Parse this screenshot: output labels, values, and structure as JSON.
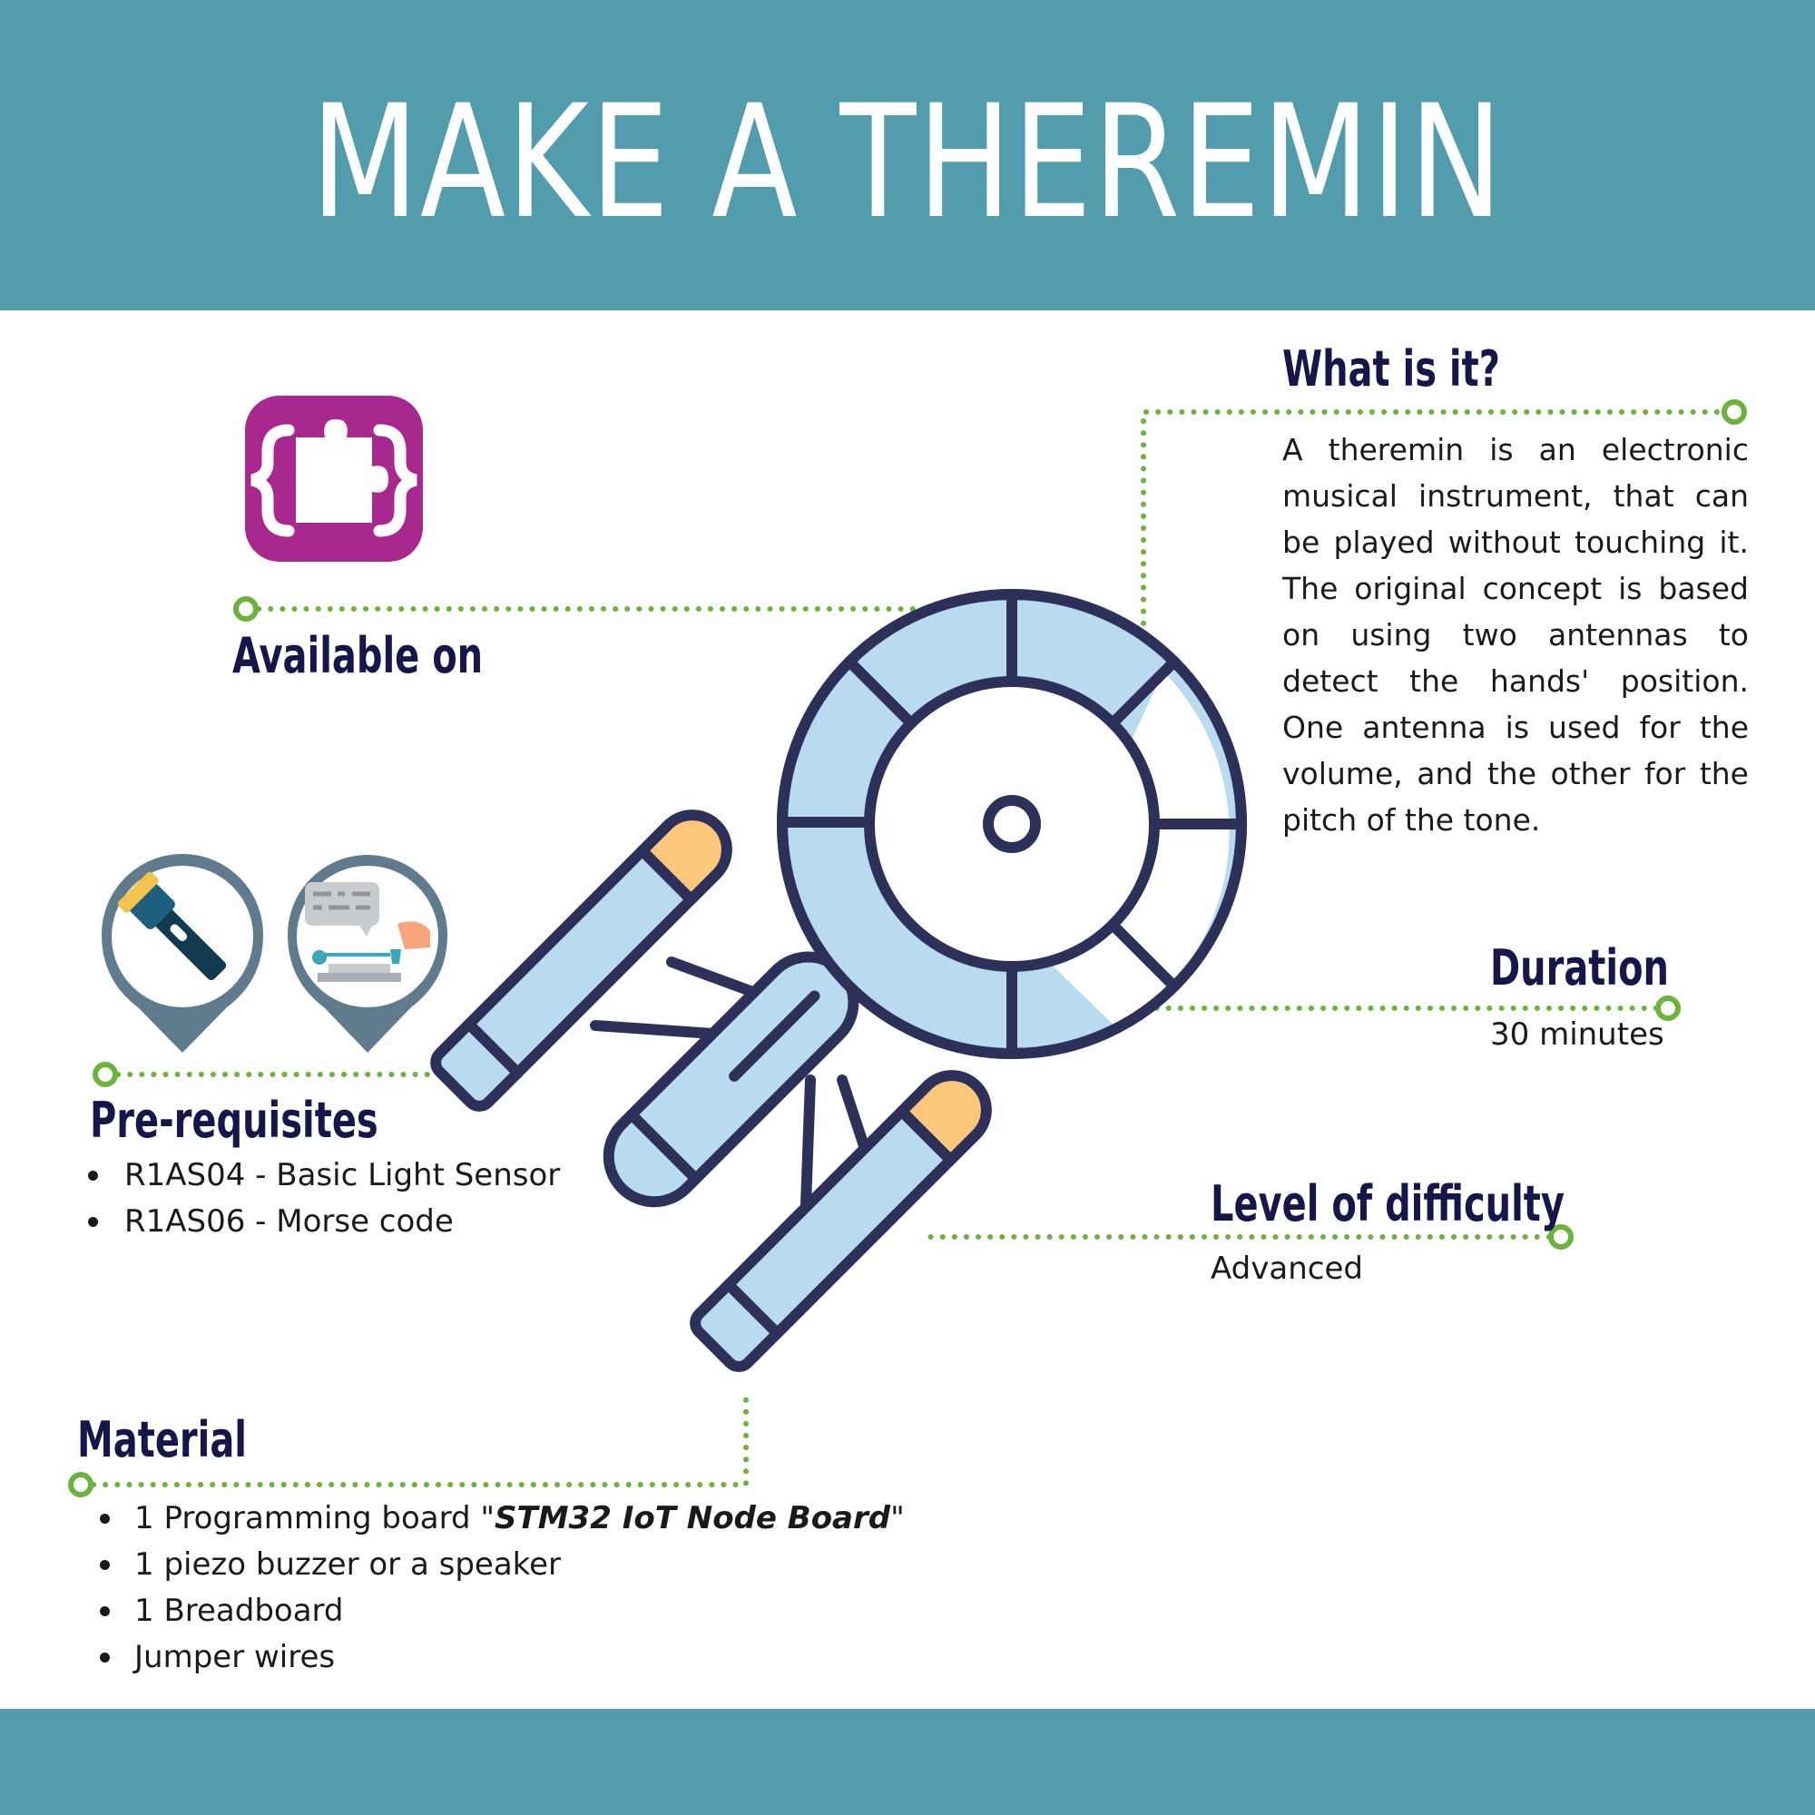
{
  "header": {
    "title": "MAKE A THEREMIN"
  },
  "what_is_it": {
    "heading": "What is it?",
    "text": "A theremin is an electronic musical instrument, that can be played without touching it. The original concept is based on using two antennas to detect the hands' position. One antenna is used for the volume, and the other for the pitch of the tone."
  },
  "available_on": {
    "heading": "Available on",
    "icon": "puzzle-brackets-icon"
  },
  "duration": {
    "heading": "Duration",
    "value": "30 minutes"
  },
  "prerequisites": {
    "heading": "Pre-requisites",
    "icons": [
      "flashlight-icon",
      "morse-code-icon"
    ],
    "items": [
      "R1AS04 - Basic Light Sensor",
      "R1AS06 - Morse code"
    ]
  },
  "difficulty": {
    "heading": "Level of difficulty",
    "value": "Advanced"
  },
  "material": {
    "heading": "Material",
    "item1_prefix": "1 Programming board \"",
    "item1_board": "STM32 IoT Node Board",
    "item1_suffix": "\"",
    "items": [
      "1 piezo buzzer or a speaker",
      "1 Breadboard",
      "Jumper wires"
    ]
  },
  "colors": {
    "band": "#519dae",
    "heading": "#17164b",
    "connector": "#6bb33a",
    "badge": "#a8288f",
    "ship_outline": "#2d3159",
    "ship_fill": "#b9dbef",
    "ship_tip": "#fbc77a"
  }
}
